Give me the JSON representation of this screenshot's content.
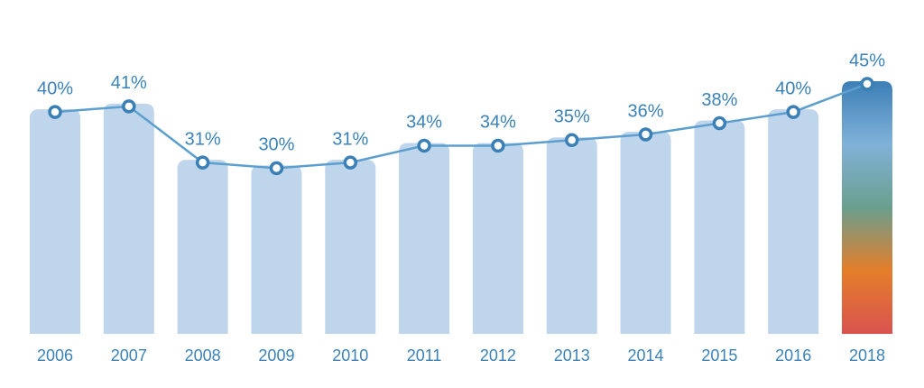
{
  "chart_data": {
    "type": "bar-line",
    "categories": [
      "2006",
      "2007",
      "2008",
      "2009",
      "2010",
      "2011",
      "2012",
      "2013",
      "2014",
      "2015",
      "2016",
      "2018"
    ],
    "values": [
      40,
      41,
      31,
      30,
      31,
      34,
      34,
      35,
      36,
      38,
      40,
      45
    ],
    "value_labels": [
      "40%",
      "41%",
      "31%",
      "30%",
      "31%",
      "34%",
      "34%",
      "35%",
      "36%",
      "38%",
      "40%",
      "45%"
    ],
    "bar_color": "#bed5eb",
    "line_color": "#5c9fcf",
    "marker_color": "#3a7fb5",
    "highlight_gradient": [
      "#3c7fb6",
      "#80b2d9",
      "#6a9f8e",
      "#e47e2a",
      "#d9534f"
    ]
  }
}
